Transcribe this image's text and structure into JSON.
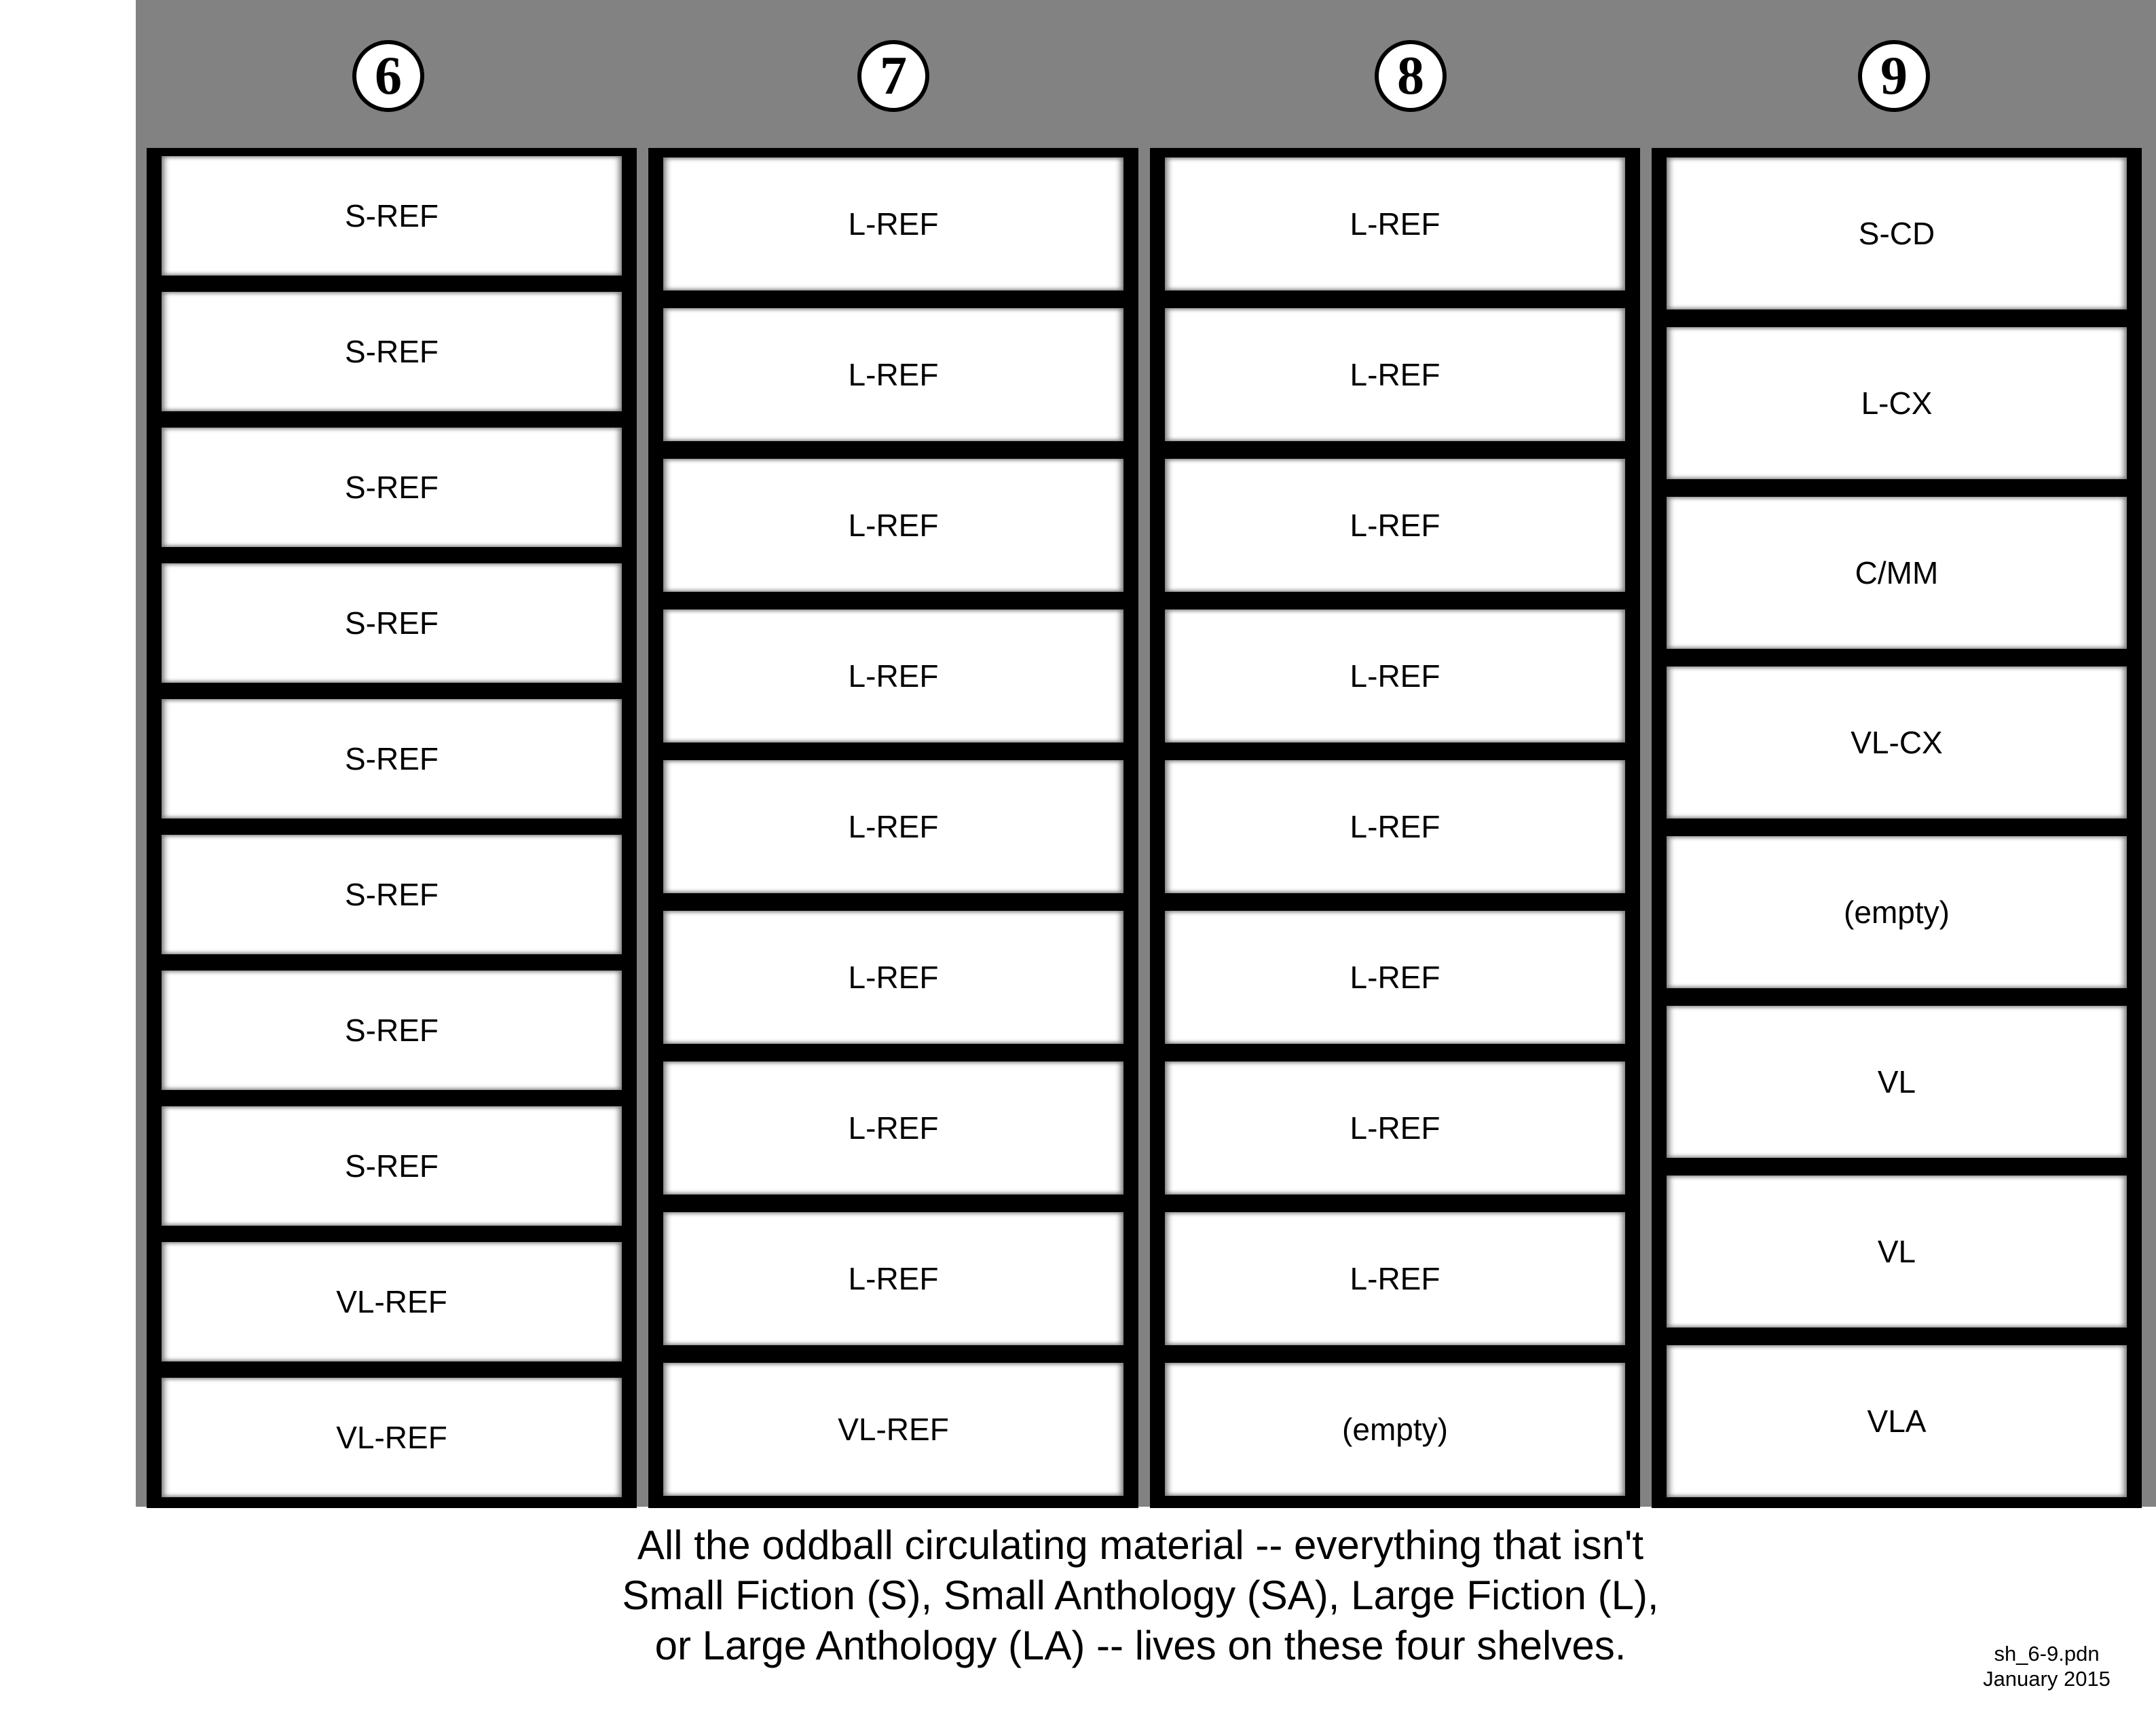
{
  "shelves": [
    {
      "number": "6",
      "slots": [
        "S-REF",
        "S-REF",
        "S-REF",
        "S-REF",
        "S-REF",
        "S-REF",
        "S-REF",
        "S-REF",
        "VL-REF",
        "VL-REF"
      ]
    },
    {
      "number": "7",
      "slots": [
        "L-REF",
        "L-REF",
        "L-REF",
        "L-REF",
        "L-REF",
        "L-REF",
        "L-REF",
        "L-REF",
        "VL-REF"
      ]
    },
    {
      "number": "8",
      "slots": [
        "L-REF",
        "L-REF",
        "L-REF",
        "L-REF",
        "L-REF",
        "L-REF",
        "L-REF",
        "L-REF",
        "(empty)"
      ]
    },
    {
      "number": "9",
      "slots": [
        "S-CD",
        "L-CX",
        "C/MM",
        "VL-CX",
        "(empty)",
        "VL",
        "VL",
        "VLA"
      ]
    }
  ],
  "caption": {
    "line1": "All the oddball circulating material -- everything that isn't",
    "line2": "Small Fiction (S), Small Anthology (SA), Large Fiction (L),",
    "line3": "or Large Anthology (LA) -- lives on these four shelves."
  },
  "file": {
    "name": "sh_6-9.pdn",
    "date": "January 2015"
  },
  "colors": {
    "band": "#828282",
    "frame": "#000000",
    "slot": "#ffffff"
  }
}
